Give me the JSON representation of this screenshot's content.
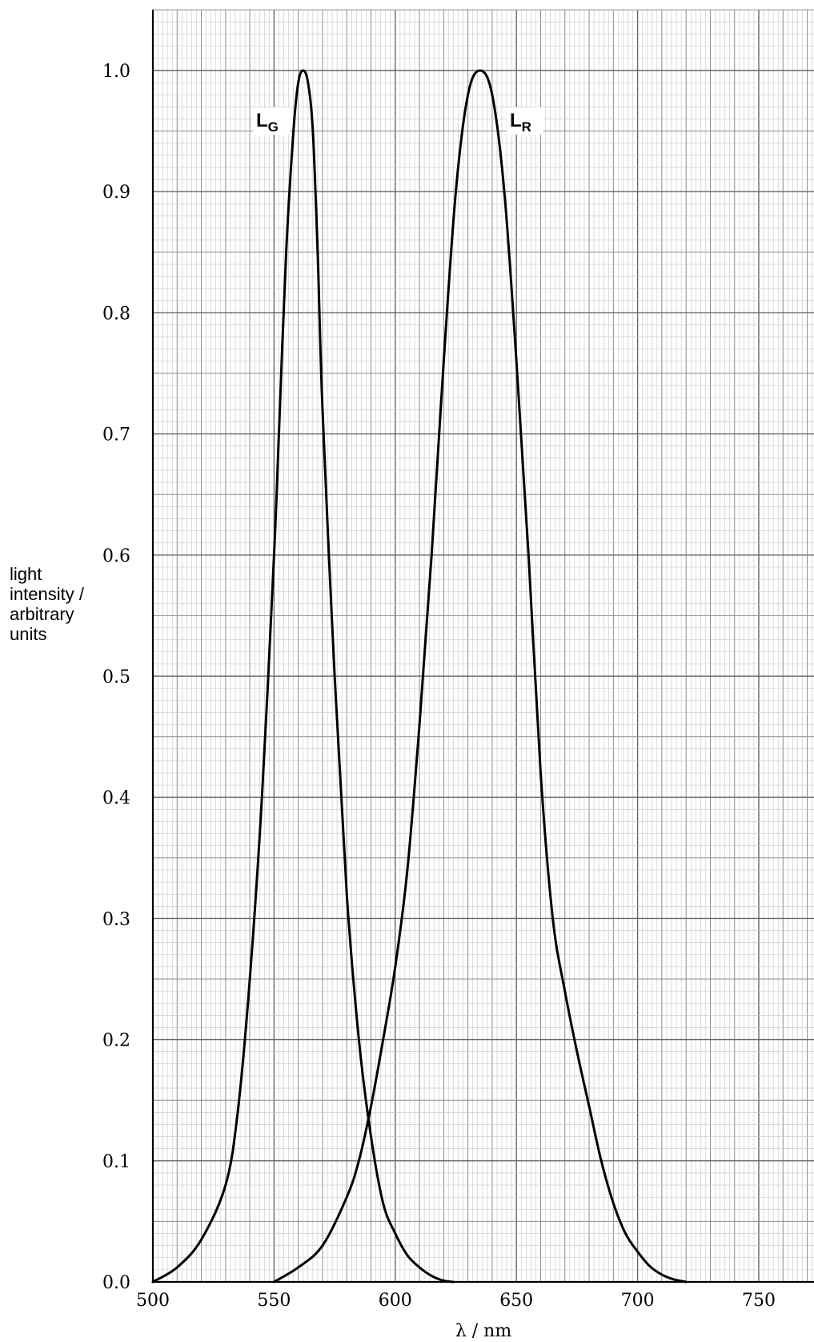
{
  "chart_data": {
    "type": "line",
    "xlabel": "λ / nm",
    "ylabel_lines": [
      "light",
      "intensity /",
      "arbitrary",
      "units"
    ],
    "xlim": [
      500,
      775
    ],
    "ylim": [
      0.0,
      1.05
    ],
    "x_ticks": [
      "500",
      "550",
      "600",
      "650",
      "700",
      "750"
    ],
    "y_ticks": [
      "0.0",
      "0.1",
      "0.2",
      "0.3",
      "0.4",
      "0.5",
      "0.6",
      "0.7",
      "0.8",
      "0.9",
      "1.0"
    ],
    "grid": true,
    "series": [
      {
        "name": "LG",
        "label_main": "L",
        "label_sub": "G",
        "x": [
          500,
          510,
          520,
          530,
          535,
          540,
          545,
          550,
          552,
          555,
          558,
          560,
          562,
          564,
          566,
          568,
          570,
          575,
          580,
          585,
          590,
          595,
          600,
          605,
          610,
          615,
          620,
          624
        ],
        "y": [
          0.0,
          0.012,
          0.035,
          0.08,
          0.14,
          0.25,
          0.4,
          0.6,
          0.7,
          0.85,
          0.95,
          0.99,
          1.0,
          0.99,
          0.95,
          0.85,
          0.72,
          0.5,
          0.32,
          0.2,
          0.12,
          0.065,
          0.04,
          0.022,
          0.012,
          0.005,
          0.001,
          0.0
        ]
      },
      {
        "name": "LR",
        "label_main": "L",
        "label_sub": "R",
        "x": [
          550,
          560,
          570,
          580,
          585,
          590,
          595,
          600,
          605,
          610,
          615,
          620,
          625,
          630,
          635,
          640,
          645,
          650,
          655,
          660,
          665,
          670,
          675,
          680,
          685,
          690,
          695,
          700,
          705,
          710,
          715,
          720
        ],
        "y": [
          0.0,
          0.012,
          0.03,
          0.07,
          0.1,
          0.145,
          0.2,
          0.26,
          0.34,
          0.46,
          0.6,
          0.76,
          0.9,
          0.98,
          1.0,
          0.98,
          0.9,
          0.76,
          0.6,
          0.42,
          0.3,
          0.24,
          0.19,
          0.145,
          0.1,
          0.065,
          0.04,
          0.025,
          0.013,
          0.006,
          0.002,
          0.0
        ]
      }
    ]
  }
}
